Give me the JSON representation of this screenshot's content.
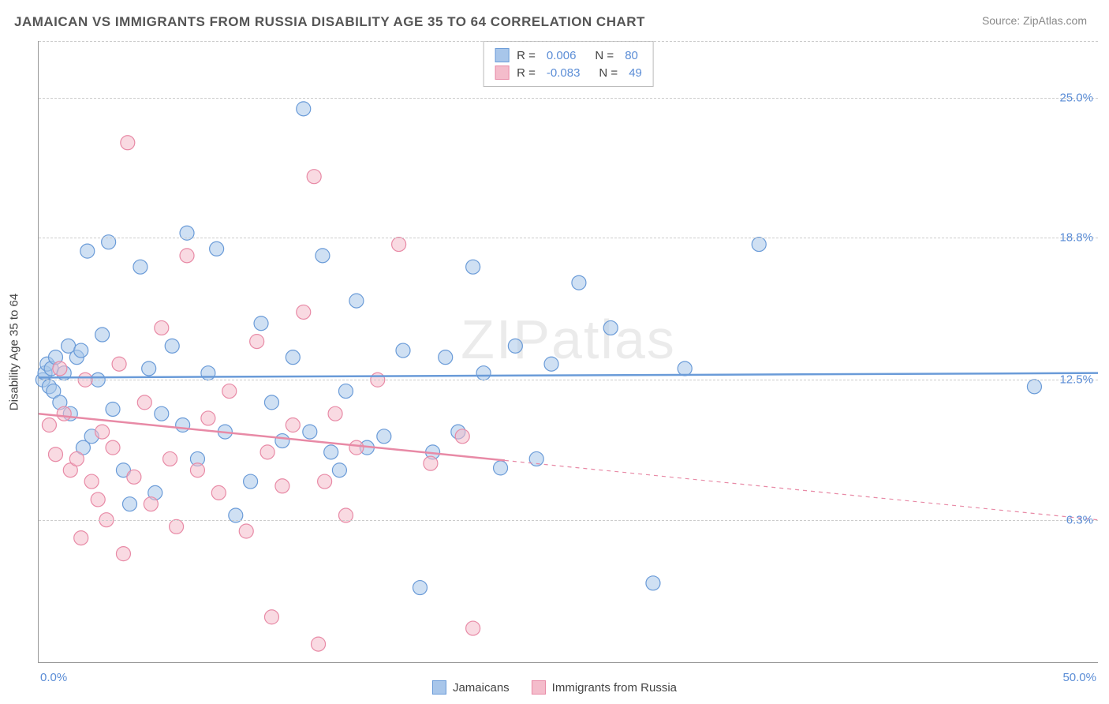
{
  "title": "JAMAICAN VS IMMIGRANTS FROM RUSSIA DISABILITY AGE 35 TO 64 CORRELATION CHART",
  "source": "Source: ZipAtlas.com",
  "watermark": "ZIPatlas",
  "ylabel": "Disability Age 35 to 64",
  "chart": {
    "type": "scatter",
    "xlim": [
      0,
      50
    ],
    "ylim": [
      0,
      27.5
    ],
    "x_ticks": [
      {
        "v": 0,
        "label": "0.0%"
      },
      {
        "v": 50,
        "label": "50.0%"
      }
    ],
    "y_ticks": [
      {
        "v": 6.3,
        "label": "6.3%"
      },
      {
        "v": 12.5,
        "label": "12.5%"
      },
      {
        "v": 18.8,
        "label": "18.8%"
      },
      {
        "v": 25.0,
        "label": "25.0%"
      }
    ],
    "tick_color": "#5b8dd6",
    "grid_color": "#cccccc",
    "background_color": "#ffffff",
    "series": [
      {
        "name": "Jamaicans",
        "color_fill": "#a8c6ea",
        "color_stroke": "#6a9bd8",
        "fill_opacity": 0.55,
        "marker_r": 9,
        "R": "0.006",
        "N": "80",
        "trend": {
          "y_start": 12.6,
          "y_end": 12.8,
          "x_start": 0,
          "x_end": 50,
          "solid_until": 50
        },
        "points": [
          [
            0.2,
            12.5
          ],
          [
            0.3,
            12.8
          ],
          [
            0.4,
            13.2
          ],
          [
            0.5,
            12.2
          ],
          [
            0.6,
            13.0
          ],
          [
            0.7,
            12.0
          ],
          [
            0.8,
            13.5
          ],
          [
            1.0,
            11.5
          ],
          [
            1.2,
            12.8
          ],
          [
            1.4,
            14.0
          ],
          [
            1.5,
            11.0
          ],
          [
            1.8,
            13.5
          ],
          [
            2.0,
            13.8
          ],
          [
            2.1,
            9.5
          ],
          [
            2.3,
            18.2
          ],
          [
            2.5,
            10.0
          ],
          [
            2.8,
            12.5
          ],
          [
            3.0,
            14.5
          ],
          [
            3.3,
            18.6
          ],
          [
            3.5,
            11.2
          ],
          [
            4.0,
            8.5
          ],
          [
            4.3,
            7.0
          ],
          [
            4.8,
            17.5
          ],
          [
            5.2,
            13.0
          ],
          [
            5.5,
            7.5
          ],
          [
            5.8,
            11.0
          ],
          [
            6.3,
            14.0
          ],
          [
            6.8,
            10.5
          ],
          [
            7.0,
            19.0
          ],
          [
            7.5,
            9.0
          ],
          [
            8.0,
            12.8
          ],
          [
            8.4,
            18.3
          ],
          [
            8.8,
            10.2
          ],
          [
            9.3,
            6.5
          ],
          [
            10.0,
            8.0
          ],
          [
            10.5,
            15.0
          ],
          [
            11.0,
            11.5
          ],
          [
            11.5,
            9.8
          ],
          [
            12.0,
            13.5
          ],
          [
            12.5,
            24.5
          ],
          [
            12.8,
            10.2
          ],
          [
            13.4,
            18.0
          ],
          [
            13.8,
            9.3
          ],
          [
            14.2,
            8.5
          ],
          [
            14.5,
            12.0
          ],
          [
            15.0,
            16.0
          ],
          [
            15.5,
            9.5
          ],
          [
            16.3,
            10.0
          ],
          [
            17.2,
            13.8
          ],
          [
            18.0,
            3.3
          ],
          [
            18.6,
            9.3
          ],
          [
            19.2,
            13.5
          ],
          [
            19.8,
            10.2
          ],
          [
            20.5,
            17.5
          ],
          [
            21.0,
            12.8
          ],
          [
            21.8,
            8.6
          ],
          [
            22.5,
            14.0
          ],
          [
            23.5,
            9.0
          ],
          [
            24.2,
            13.2
          ],
          [
            25.5,
            16.8
          ],
          [
            27.0,
            14.8
          ],
          [
            29.0,
            3.5
          ],
          [
            30.5,
            13.0
          ],
          [
            34.0,
            18.5
          ],
          [
            47.0,
            12.2
          ]
        ]
      },
      {
        "name": "Immigrants from Russia",
        "color_fill": "#f4bccb",
        "color_stroke": "#e88aa6",
        "fill_opacity": 0.55,
        "marker_r": 9,
        "R": "-0.083",
        "N": "49",
        "trend": {
          "y_start": 11.0,
          "y_end": 6.3,
          "x_start": 0,
          "x_end": 50,
          "solid_until": 22
        },
        "points": [
          [
            0.5,
            10.5
          ],
          [
            0.8,
            9.2
          ],
          [
            1.0,
            13.0
          ],
          [
            1.2,
            11.0
          ],
          [
            1.5,
            8.5
          ],
          [
            1.8,
            9.0
          ],
          [
            2.0,
            5.5
          ],
          [
            2.2,
            12.5
          ],
          [
            2.5,
            8.0
          ],
          [
            2.8,
            7.2
          ],
          [
            3.0,
            10.2
          ],
          [
            3.2,
            6.3
          ],
          [
            3.5,
            9.5
          ],
          [
            3.8,
            13.2
          ],
          [
            4.0,
            4.8
          ],
          [
            4.2,
            23.0
          ],
          [
            4.5,
            8.2
          ],
          [
            5.0,
            11.5
          ],
          [
            5.3,
            7.0
          ],
          [
            5.8,
            14.8
          ],
          [
            6.2,
            9.0
          ],
          [
            6.5,
            6.0
          ],
          [
            7.0,
            18.0
          ],
          [
            7.5,
            8.5
          ],
          [
            8.0,
            10.8
          ],
          [
            8.5,
            7.5
          ],
          [
            9.0,
            12.0
          ],
          [
            9.8,
            5.8
          ],
          [
            10.3,
            14.2
          ],
          [
            10.8,
            9.3
          ],
          [
            11.0,
            2.0
          ],
          [
            11.5,
            7.8
          ],
          [
            12.0,
            10.5
          ],
          [
            12.5,
            15.5
          ],
          [
            13.0,
            21.5
          ],
          [
            13.2,
            0.8
          ],
          [
            13.5,
            8.0
          ],
          [
            14.0,
            11.0
          ],
          [
            14.5,
            6.5
          ],
          [
            15.0,
            9.5
          ],
          [
            16.0,
            12.5
          ],
          [
            17.0,
            18.5
          ],
          [
            18.5,
            8.8
          ],
          [
            20.0,
            10.0
          ],
          [
            20.5,
            1.5
          ]
        ]
      }
    ]
  },
  "legend_box": {
    "rows": [
      {
        "swatch_fill": "#a8c6ea",
        "swatch_stroke": "#6a9bd8",
        "r_label": "R =",
        "r_val": "0.006",
        "n_label": "N =",
        "n_val": "80"
      },
      {
        "swatch_fill": "#f4bccb",
        "swatch_stroke": "#e88aa6",
        "r_label": "R =",
        "r_val": "-0.083",
        "n_label": "N =",
        "n_val": "49"
      }
    ]
  },
  "bottom_legend": [
    {
      "swatch_fill": "#a8c6ea",
      "swatch_stroke": "#6a9bd8",
      "label": "Jamaicans"
    },
    {
      "swatch_fill": "#f4bccb",
      "swatch_stroke": "#e88aa6",
      "label": "Immigrants from Russia"
    }
  ]
}
